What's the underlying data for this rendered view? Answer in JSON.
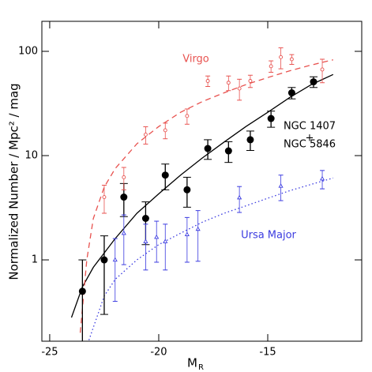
{
  "chart_data": {
    "type": "scatter",
    "x_label": "M",
    "x_label_sub": "R",
    "y_label": "Normalized Number / Mpc² / mag",
    "xlim": [
      -25.36,
      -10.69
    ],
    "ylim": [
      0.166,
      194
    ],
    "log_y": true,
    "xticks": [
      -25,
      -20,
      -15
    ],
    "yticks": [
      1,
      10,
      100
    ],
    "annotations": [
      "Virgo",
      "NGC 1407",
      "+",
      "NGC 5846",
      "Ursa Major"
    ],
    "series": [
      {
        "color": "#000000",
        "marker": "filled-circle",
        "x": [
          -23.5,
          -22.5,
          -21.6,
          -20.6,
          -19.7,
          -18.7,
          -17.75,
          -16.8,
          -15.8,
          -14.85,
          -13.9,
          -12.9
        ],
        "values": [
          0.5,
          1.0,
          4.0,
          2.5,
          6.5,
          4.7,
          11.7,
          11.1,
          14.2,
          22.7,
          40,
          51
        ],
        "errors": [
          0.5,
          0.7,
          1.4,
          1.1,
          1.8,
          1.5,
          2.5,
          2.5,
          3,
          4,
          5,
          6
        ]
      },
      {
        "color": "#e8524f",
        "marker": "open-circle",
        "x": [
          -22.5,
          -21.6,
          -20.6,
          -19.7,
          -18.7,
          -17.75,
          -16.8,
          -16.3,
          -15.8,
          -14.85,
          -14.4,
          -13.9,
          -12.5
        ],
        "values": [
          4.0,
          6.2,
          15.9,
          17.5,
          24,
          52,
          50,
          44,
          52,
          72,
          88,
          84,
          67
        ],
        "errors": [
          1.2,
          1.5,
          3,
          3,
          4,
          6,
          8,
          10,
          7,
          9,
          20,
          9,
          17
        ]
      },
      {
        "color": "#3a3ae0",
        "marker": "triangle",
        "x": [
          -22.0,
          -21.6,
          -20.6,
          -20.1,
          -19.7,
          -18.7,
          -18.2,
          -16.3,
          -14.4,
          -12.5
        ],
        "values": [
          1.0,
          1.8,
          1.5,
          1.65,
          1.5,
          1.75,
          1.97,
          3.95,
          5.1,
          6.0
        ],
        "errors": [
          0.6,
          0.9,
          0.7,
          0.7,
          0.7,
          0.8,
          1.0,
          1.1,
          1.4,
          1.2
        ]
      }
    ],
    "curves": [
      {
        "color": "#000000",
        "dash": "solid",
        "x": [
          -24,
          -23.5,
          -23,
          -22,
          -21,
          -20,
          -19,
          -18,
          -17,
          -16,
          -15,
          -14,
          -13,
          -12
        ],
        "values": [
          0.28,
          0.55,
          0.85,
          1.6,
          2.8,
          4.3,
          6.5,
          9.5,
          13.5,
          19,
          26,
          36,
          48,
          60
        ]
      },
      {
        "color": "#e8524f",
        "dash": "dashed",
        "x": [
          -23.6,
          -23.3,
          -23,
          -22.5,
          -22,
          -21,
          -20,
          -19,
          -18,
          -17,
          -16,
          -15,
          -14,
          -13,
          -12
        ],
        "values": [
          0.2,
          1.0,
          2.5,
          5.0,
          7.5,
          13,
          19,
          26,
          33,
          40,
          48,
          56,
          65,
          74,
          83
        ]
      },
      {
        "color": "#3a3ae0",
        "dash": "dotted",
        "x": [
          -23.2,
          -22.5,
          -22,
          -21,
          -20,
          -19,
          -18,
          -17,
          -16,
          -15,
          -14,
          -13,
          -12
        ],
        "values": [
          0.17,
          0.45,
          0.65,
          1.0,
          1.4,
          1.8,
          2.3,
          2.8,
          3.3,
          3.9,
          4.6,
          5.3,
          6.1
        ]
      }
    ]
  }
}
